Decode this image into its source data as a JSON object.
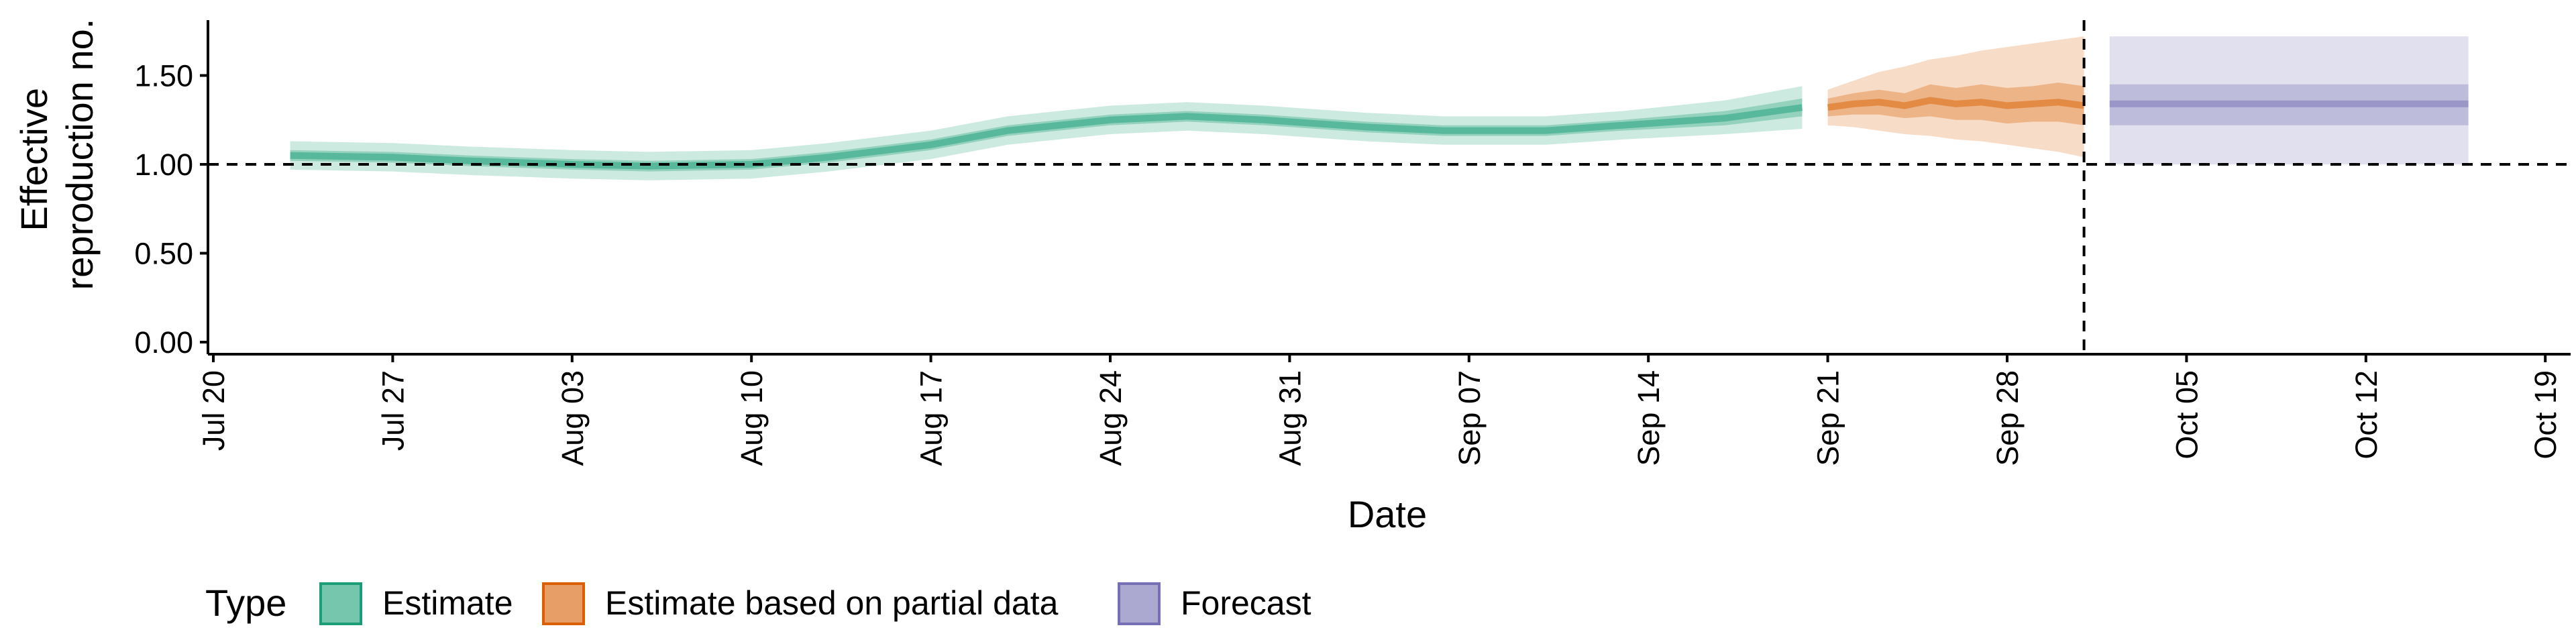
{
  "chart_data": {
    "type": "area",
    "ylabel": [
      "Effective",
      "reproduction no."
    ],
    "xlabel": "Date",
    "x_ticks": [
      "Jul 20",
      "Jul 27",
      "Aug 03",
      "Aug 10",
      "Aug 17",
      "Aug 24",
      "Aug 31",
      "Sep 07",
      "Sep 14",
      "Sep 21",
      "Sep 28",
      "Oct 05",
      "Oct 12",
      "Oct 19"
    ],
    "y_ticks": [
      "0.00",
      "0.50",
      "1.00",
      "1.50"
    ],
    "ylim": [
      0,
      1.8
    ],
    "reference_lines": {
      "horizontal_y": 1.0,
      "vertical_date": "Oct 01"
    },
    "legend": {
      "title": "Type",
      "position": "bottom",
      "items": [
        {
          "label": "Estimate",
          "fill": "#1b9e77"
        },
        {
          "label": "Estimate based on partial data",
          "fill": "#d95f02"
        },
        {
          "label": "Forecast",
          "fill": "#7570b3"
        }
      ]
    },
    "series": [
      {
        "type_label": "Estimate",
        "color": "#1b9e77",
        "x": [
          3,
          7,
          10,
          14,
          17,
          21,
          24,
          28,
          31,
          35,
          38,
          41,
          45,
          48,
          52,
          55,
          59,
          62
        ],
        "median": [
          1.05,
          1.04,
          1.02,
          1.0,
          0.99,
          1.0,
          1.04,
          1.11,
          1.19,
          1.25,
          1.27,
          1.25,
          1.21,
          1.19,
          1.19,
          1.22,
          1.26,
          1.32
        ],
        "lower50": [
          1.02,
          1.01,
          0.99,
          0.97,
          0.96,
          0.97,
          1.01,
          1.08,
          1.16,
          1.22,
          1.24,
          1.22,
          1.18,
          1.16,
          1.16,
          1.19,
          1.22,
          1.27
        ],
        "upper50": [
          1.08,
          1.07,
          1.05,
          1.03,
          1.02,
          1.03,
          1.07,
          1.14,
          1.22,
          1.28,
          1.3,
          1.28,
          1.24,
          1.22,
          1.22,
          1.25,
          1.3,
          1.37
        ],
        "lower90": [
          0.97,
          0.96,
          0.94,
          0.92,
          0.91,
          0.92,
          0.96,
          1.03,
          1.11,
          1.17,
          1.19,
          1.17,
          1.13,
          1.11,
          1.11,
          1.14,
          1.17,
          1.2
        ],
        "upper90": [
          1.13,
          1.12,
          1.1,
          1.08,
          1.07,
          1.08,
          1.12,
          1.19,
          1.27,
          1.33,
          1.35,
          1.33,
          1.29,
          1.27,
          1.27,
          1.3,
          1.36,
          1.44
        ]
      },
      {
        "type_label": "Estimate based on partial data",
        "color": "#d95f02",
        "x": [
          63,
          64,
          65,
          66,
          67,
          68,
          69,
          70,
          71,
          72,
          73
        ],
        "median": [
          1.32,
          1.34,
          1.35,
          1.33,
          1.36,
          1.34,
          1.35,
          1.33,
          1.34,
          1.35,
          1.33
        ],
        "lower50": [
          1.27,
          1.28,
          1.28,
          1.26,
          1.27,
          1.25,
          1.25,
          1.23,
          1.24,
          1.24,
          1.22
        ],
        "upper50": [
          1.37,
          1.4,
          1.42,
          1.4,
          1.45,
          1.43,
          1.45,
          1.43,
          1.44,
          1.46,
          1.44
        ],
        "lower90": [
          1.22,
          1.21,
          1.19,
          1.17,
          1.16,
          1.14,
          1.13,
          1.11,
          1.09,
          1.07,
          1.04
        ],
        "upper90": [
          1.42,
          1.47,
          1.52,
          1.55,
          1.59,
          1.61,
          1.64,
          1.66,
          1.68,
          1.7,
          1.72
        ]
      },
      {
        "type_label": "Forecast",
        "color": "#7570b3",
        "x": [
          74,
          88
        ],
        "median": [
          1.34,
          1.34
        ],
        "lower50": [
          1.22,
          1.22
        ],
        "upper50": [
          1.45,
          1.45
        ],
        "lower90": [
          1.0,
          1.0
        ],
        "upper90": [
          1.72,
          1.72
        ]
      }
    ]
  }
}
